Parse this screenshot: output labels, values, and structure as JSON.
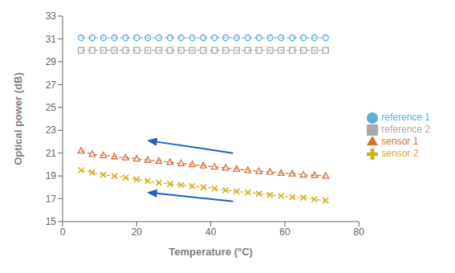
{
  "chart_data": {
    "type": "line",
    "xlabel": "Temperature (°C)",
    "ylabel": "Optical power (dB)",
    "xlim": [
      0,
      80
    ],
    "ylim": [
      15,
      33
    ],
    "xticks": [
      0,
      20,
      40,
      60,
      80
    ],
    "yticks": [
      15,
      17,
      19,
      21,
      23,
      25,
      27,
      29,
      31,
      33
    ],
    "legend": "right",
    "series": [
      {
        "name": "reference 1",
        "color": "#5aafdc",
        "marker": "circle",
        "line_style": "dashed",
        "x": [
          5,
          8,
          11,
          14,
          17,
          20,
          23,
          26,
          29,
          32,
          35,
          38,
          41,
          44,
          47,
          50,
          53,
          56,
          59,
          62,
          65,
          68,
          71
        ],
        "values": [
          31.1,
          31.1,
          31.1,
          31.1,
          31.1,
          31.1,
          31.1,
          31.1,
          31.1,
          31.1,
          31.1,
          31.1,
          31.1,
          31.1,
          31.1,
          31.1,
          31.1,
          31.1,
          31.1,
          31.1,
          31.1,
          31.1,
          31.1
        ]
      },
      {
        "name": "sensor 1",
        "color": "#d4703c",
        "marker": "triangle",
        "line_style": "dashed",
        "x": [
          5,
          8,
          11,
          14,
          17,
          20,
          23,
          26,
          29,
          32,
          35,
          38,
          41,
          44,
          47,
          50,
          53,
          56,
          59,
          62,
          65,
          68,
          71
        ],
        "values": [
          21.2,
          20.9,
          20.8,
          20.7,
          20.6,
          20.5,
          20.4,
          20.3,
          20.2,
          20.1,
          20.0,
          19.9,
          19.8,
          19.7,
          19.6,
          19.5,
          19.4,
          19.35,
          19.25,
          19.2,
          19.1,
          19.05,
          19.0
        ]
      },
      {
        "name": "reference 2",
        "color": "#aaaaaa",
        "marker": "square",
        "line_style": "dashed",
        "x": [
          5,
          8,
          11,
          14,
          17,
          20,
          23,
          26,
          29,
          32,
          35,
          38,
          41,
          44,
          47,
          50,
          53,
          56,
          59,
          62,
          65,
          68,
          71
        ],
        "values": [
          30.0,
          30.0,
          30.0,
          30.0,
          30.0,
          30.0,
          30.0,
          30.0,
          30.0,
          30.0,
          30.0,
          30.0,
          30.0,
          30.0,
          30.0,
          30.0,
          30.0,
          30.0,
          30.0,
          30.0,
          30.0,
          30.0,
          30.0
        ]
      },
      {
        "name": "sensor 2",
        "color": "#d4b020",
        "marker": "x",
        "line_style": "dashed",
        "x": [
          5,
          8,
          11,
          14,
          17,
          20,
          23,
          26,
          29,
          32,
          35,
          38,
          41,
          44,
          47,
          50,
          53,
          56,
          59,
          62,
          65,
          68,
          71
        ],
        "values": [
          19.5,
          19.3,
          19.1,
          19.0,
          18.85,
          18.7,
          18.55,
          18.4,
          18.3,
          18.2,
          18.1,
          18.0,
          17.9,
          17.75,
          17.65,
          17.55,
          17.45,
          17.35,
          17.25,
          17.15,
          17.1,
          16.95,
          16.85
        ]
      }
    ],
    "annotations": [
      {
        "x": 46,
        "y": 21.0,
        "x_end": 23,
        "y_end": 22.1,
        "color": "#2060c0"
      },
      {
        "x": 46,
        "y": 16.78,
        "x_end": 23,
        "y_end": 17.55,
        "color": "#2060c0"
      }
    ]
  }
}
